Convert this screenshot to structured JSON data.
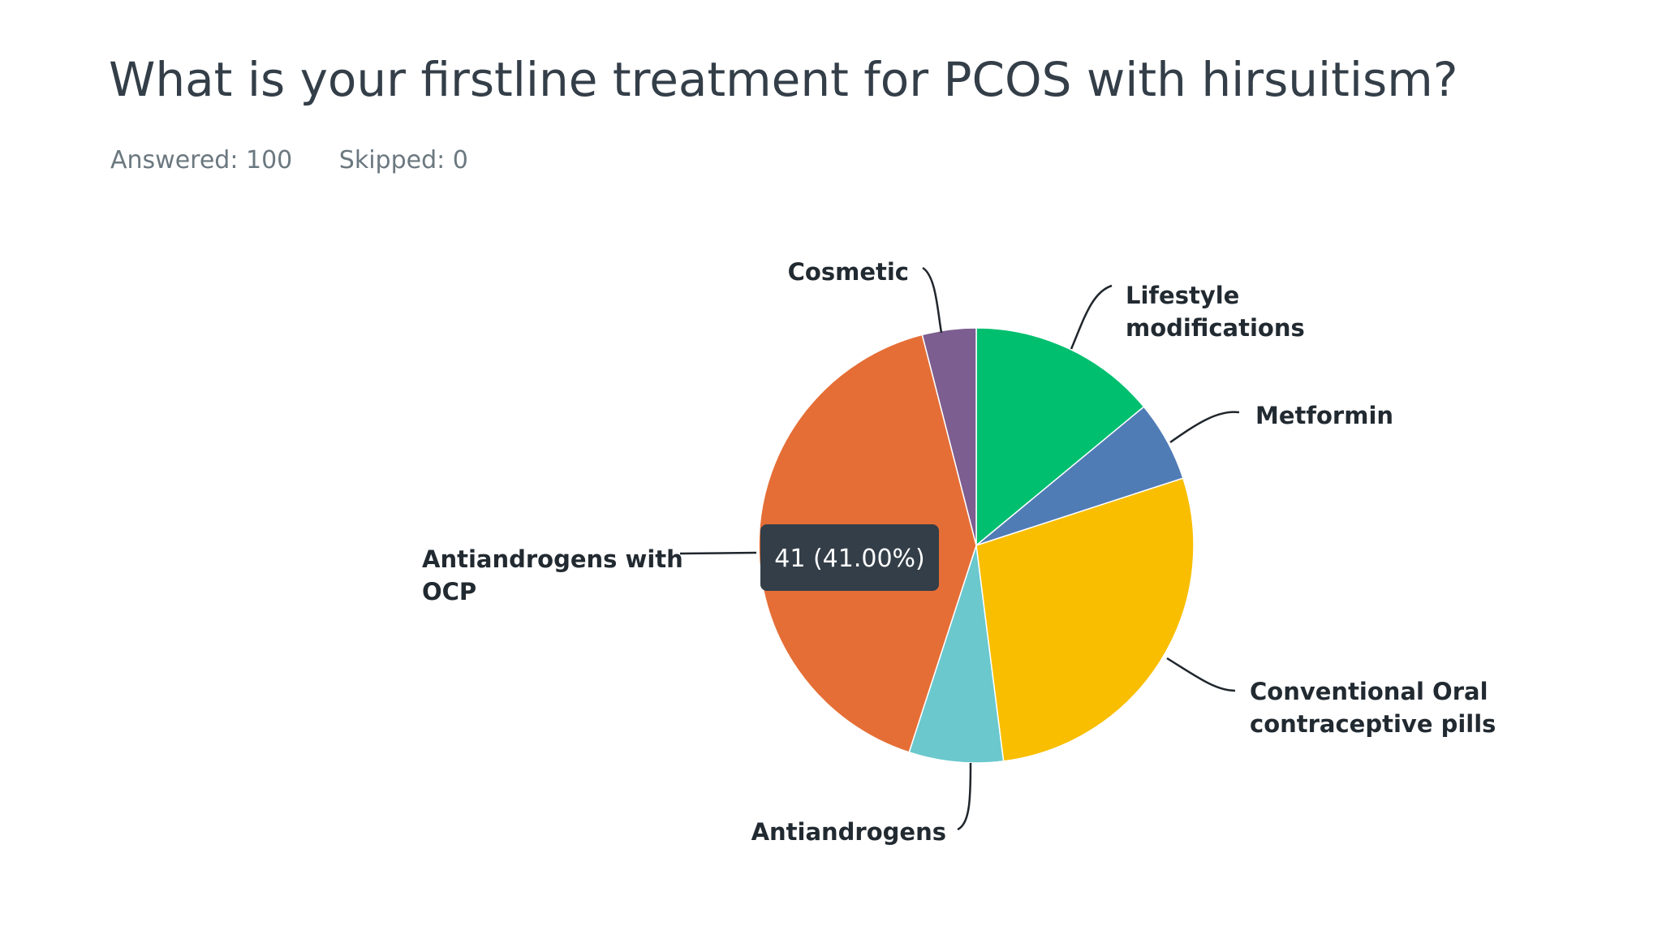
{
  "question": {
    "title": "What is your firstline treatment for PCOS with hirsuitism?",
    "answered_label": "Answered: 100",
    "skipped_label": "Skipped: 0"
  },
  "tooltip": {
    "text": "41 (41.00%)"
  },
  "chart_data": {
    "type": "pie",
    "title": "",
    "start": "top, clockwise",
    "slices": [
      {
        "label_lines": [
          "Lifestyle",
          "modifications"
        ],
        "value": 14,
        "color": "#00bf6f"
      },
      {
        "label_lines": [
          "Metformin"
        ],
        "value": 6,
        "color": "#507cb6"
      },
      {
        "label_lines": [
          "Conventional Oral",
          "contraceptive pills"
        ],
        "value": 28,
        "color": "#f9be00"
      },
      {
        "label_lines": [
          "Antiandrogens"
        ],
        "value": 7,
        "color": "#6bc8cd"
      },
      {
        "label_lines": [
          "Antiandrogens with",
          "OCP"
        ],
        "value": 41,
        "color": "#e56e36"
      },
      {
        "label_lines": [
          "Cosmetic"
        ],
        "value": 4,
        "color": "#7d5e90"
      }
    ],
    "tooltip_slice": "Antiandrogens with OCP"
  }
}
